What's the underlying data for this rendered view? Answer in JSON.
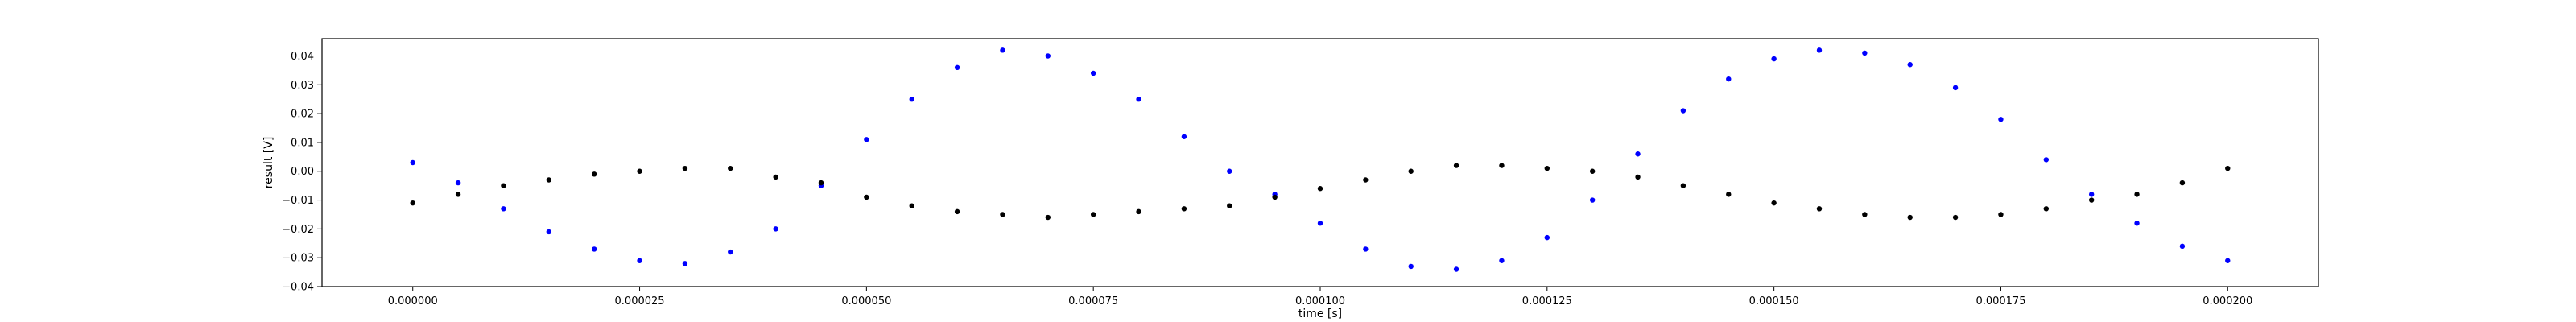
{
  "chart_data": {
    "type": "scatter",
    "xlabel": "time [s]",
    "ylabel": "result [V]",
    "xlim": [
      -1e-05,
      0.00021
    ],
    "ylim": [
      -0.04,
      0.046
    ],
    "x_ticks": [
      0,
      2.5e-05,
      5e-05,
      7.5e-05,
      0.0001,
      0.000125,
      0.00015,
      0.000175,
      0.0002
    ],
    "x_tick_labels": [
      "0.000000",
      "0.000025",
      "0.000050",
      "0.000075",
      "0.000100",
      "0.000125",
      "0.000150",
      "0.000175",
      "0.000200"
    ],
    "y_ticks": [
      -0.04,
      -0.03,
      -0.02,
      -0.01,
      0.0,
      0.01,
      0.02,
      0.03,
      0.04
    ],
    "y_tick_labels": [
      "−0.04",
      "−0.03",
      "−0.02",
      "−0.01",
      "0.00",
      "0.01",
      "0.02",
      "0.03",
      "0.04"
    ],
    "grid": false,
    "legend": "none",
    "series": [
      {
        "color": "#0000ff",
        "marker": "dot",
        "points": [
          [
            0.0,
            0.003
          ],
          [
            5e-06,
            -0.004
          ],
          [
            1e-05,
            -0.013
          ],
          [
            1.5e-05,
            -0.021
          ],
          [
            2e-05,
            -0.027
          ],
          [
            2.5e-05,
            -0.031
          ],
          [
            3e-05,
            -0.032
          ],
          [
            3.5e-05,
            -0.028
          ],
          [
            4e-05,
            -0.02
          ],
          [
            4.5e-05,
            -0.005
          ],
          [
            5e-05,
            0.011
          ],
          [
            5.5e-05,
            0.025
          ],
          [
            6e-05,
            0.036
          ],
          [
            6.5e-05,
            0.042
          ],
          [
            7e-05,
            0.04
          ],
          [
            7.5e-05,
            0.034
          ],
          [
            8e-05,
            0.025
          ],
          [
            8.5e-05,
            0.012
          ],
          [
            9e-05,
            0.0
          ],
          [
            9.5e-05,
            -0.008
          ],
          [
            0.0001,
            -0.018
          ],
          [
            0.000105,
            -0.027
          ],
          [
            0.00011,
            -0.033
          ],
          [
            0.000115,
            -0.034
          ],
          [
            0.00012,
            -0.031
          ],
          [
            0.000125,
            -0.023
          ],
          [
            0.00013,
            -0.01
          ],
          [
            0.000135,
            0.006
          ],
          [
            0.00014,
            0.021
          ],
          [
            0.000145,
            0.032
          ],
          [
            0.00015,
            0.039
          ],
          [
            0.000155,
            0.042
          ],
          [
            0.00016,
            0.041
          ],
          [
            0.000165,
            0.037
          ],
          [
            0.00017,
            0.029
          ],
          [
            0.000175,
            0.018
          ],
          [
            0.00018,
            0.004
          ],
          [
            0.000185,
            -0.008
          ],
          [
            0.00019,
            -0.018
          ],
          [
            0.000195,
            -0.026
          ],
          [
            0.0002,
            -0.031
          ]
        ]
      },
      {
        "color": "#000000",
        "marker": "dot",
        "points": [
          [
            0.0,
            -0.011
          ],
          [
            5e-06,
            -0.008
          ],
          [
            1e-05,
            -0.005
          ],
          [
            1.5e-05,
            -0.003
          ],
          [
            2e-05,
            -0.001
          ],
          [
            2.5e-05,
            0.0
          ],
          [
            3e-05,
            0.001
          ],
          [
            3.5e-05,
            0.001
          ],
          [
            4e-05,
            -0.002
          ],
          [
            4.5e-05,
            -0.004
          ],
          [
            5e-05,
            -0.009
          ],
          [
            5.5e-05,
            -0.012
          ],
          [
            6e-05,
            -0.014
          ],
          [
            6.5e-05,
            -0.015
          ],
          [
            7e-05,
            -0.016
          ],
          [
            7.5e-05,
            -0.015
          ],
          [
            8e-05,
            -0.014
          ],
          [
            8.5e-05,
            -0.013
          ],
          [
            9e-05,
            -0.012
          ],
          [
            9.5e-05,
            -0.009
          ],
          [
            0.0001,
            -0.006
          ],
          [
            0.000105,
            -0.003
          ],
          [
            0.00011,
            0.0
          ],
          [
            0.000115,
            0.002
          ],
          [
            0.00012,
            0.002
          ],
          [
            0.000125,
            0.001
          ],
          [
            0.00013,
            0.0
          ],
          [
            0.000135,
            -0.002
          ],
          [
            0.00014,
            -0.005
          ],
          [
            0.000145,
            -0.008
          ],
          [
            0.00015,
            -0.011
          ],
          [
            0.000155,
            -0.013
          ],
          [
            0.00016,
            -0.015
          ],
          [
            0.000165,
            -0.016
          ],
          [
            0.00017,
            -0.016
          ],
          [
            0.000175,
            -0.015
          ],
          [
            0.00018,
            -0.013
          ],
          [
            0.000185,
            -0.01
          ],
          [
            0.00019,
            -0.008
          ],
          [
            0.000195,
            -0.004
          ],
          [
            0.0002,
            0.001
          ]
        ]
      }
    ]
  }
}
